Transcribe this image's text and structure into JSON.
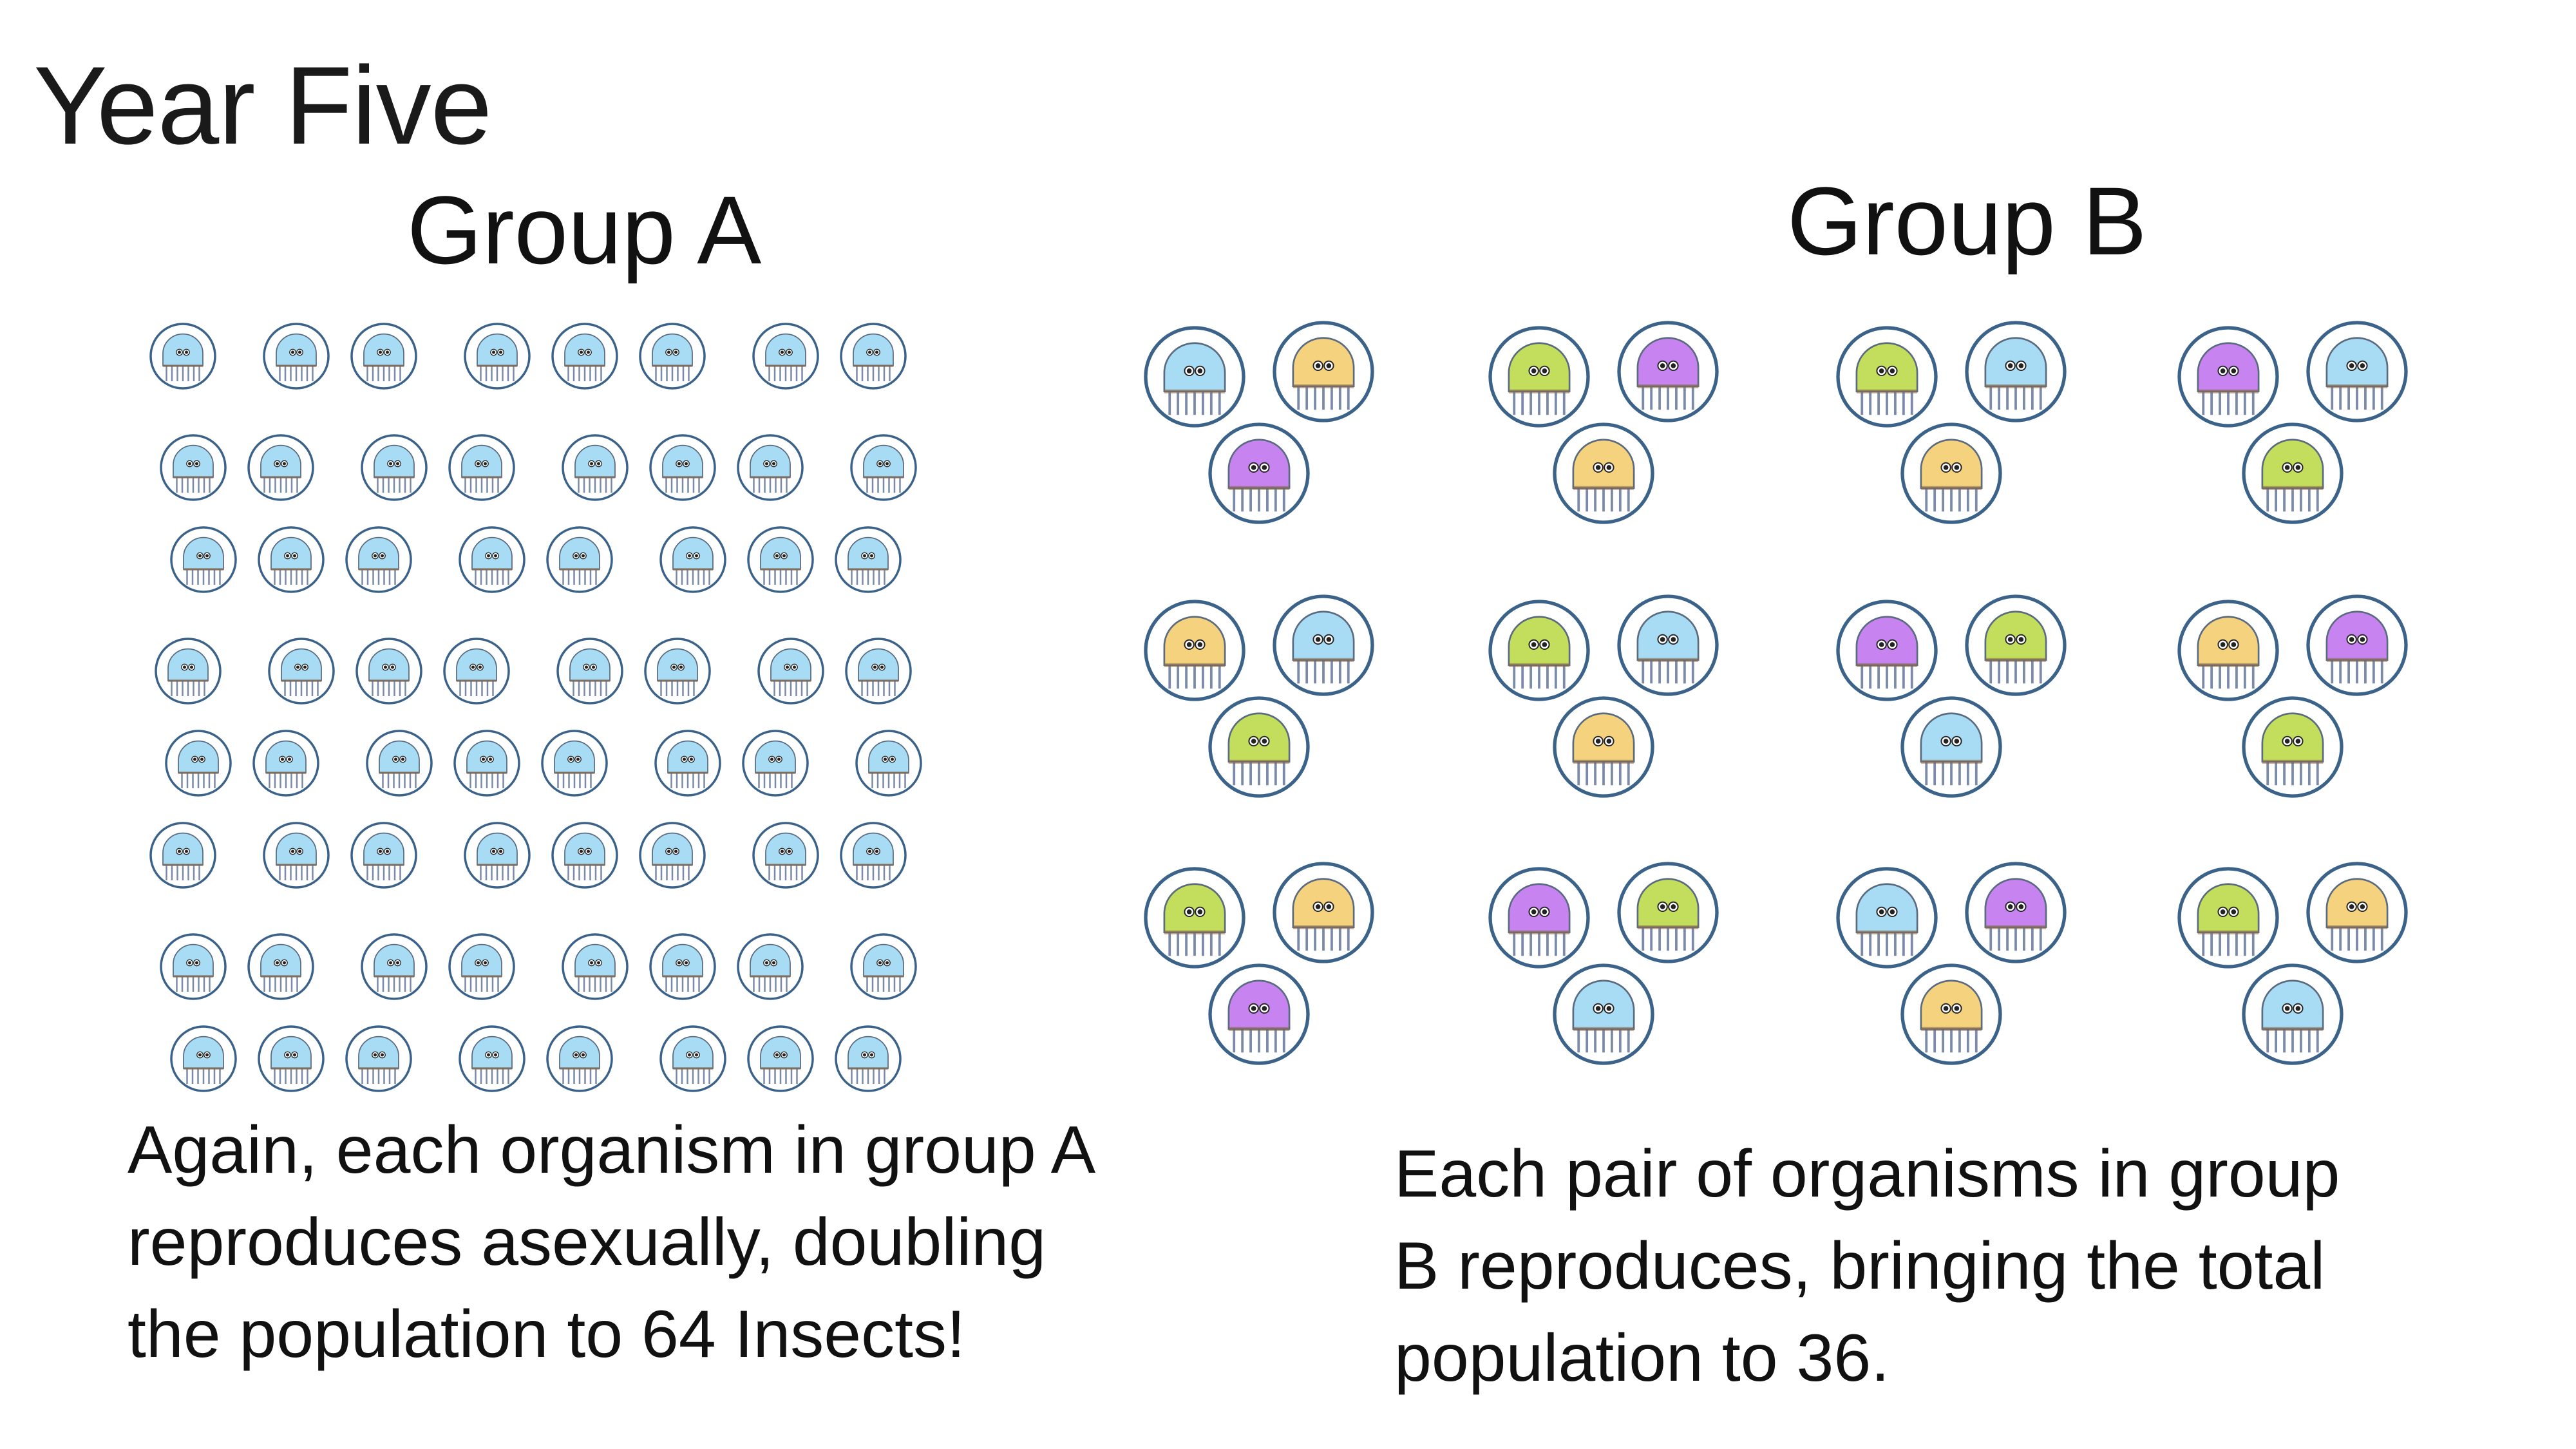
{
  "slide": {
    "title": "Year Five"
  },
  "group_a": {
    "label": "Group A",
    "organism_color": "#a8dcf4",
    "rows": 8,
    "columns": 8,
    "caption_lines": [
      "Again, each organism in group A",
      "reproduces asexually, doubling",
      "the population to 64 Insects!"
    ]
  },
  "group_b": {
    "label": "Group B",
    "cluster_colors": [
      [
        "blue",
        "yellow",
        "purple"
      ],
      [
        "green",
        "purple",
        "yellow"
      ],
      [
        "green",
        "blue",
        "yellow"
      ],
      [
        "purple",
        "blue",
        "green"
      ],
      [
        "yellow",
        "blue",
        "green"
      ],
      [
        "green",
        "blue",
        "yellow"
      ],
      [
        "purple",
        "green",
        "blue"
      ],
      [
        "yellow",
        "purple",
        "green"
      ],
      [
        "green",
        "yellow",
        "purple"
      ],
      [
        "purple",
        "green",
        "blue"
      ],
      [
        "blue",
        "purple",
        "yellow"
      ],
      [
        "green",
        "yellow",
        "blue"
      ]
    ],
    "caption_lines": [
      "Each pair of organisms in group",
      "B reproduces, bringing the total",
      "population to 36."
    ]
  },
  "colors": {
    "blue": "#a8dcf4",
    "yellow": "#f5d27e",
    "purple": "#c784f0",
    "green": "#c3dd5c",
    "outline": "#3b6289",
    "eye": "#222222"
  }
}
